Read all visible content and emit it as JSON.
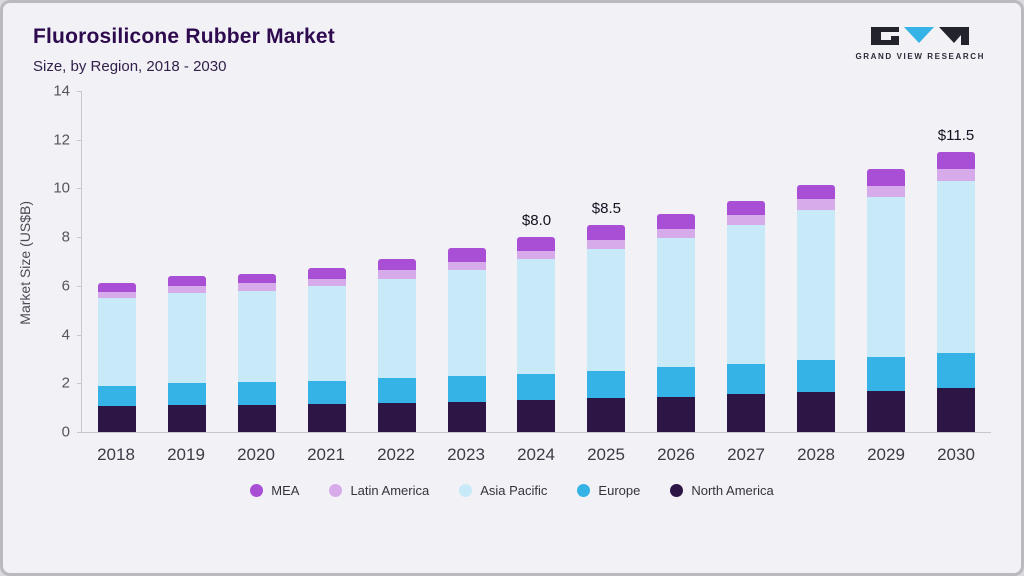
{
  "header": {
    "title": "Fluorosilicone Rubber Market",
    "subtitle": "Size, by Region, 2018 - 2030",
    "logo_text": "GRAND VIEW RESEARCH"
  },
  "colors": {
    "background": "#f2f1f6",
    "title": "#2e0a4f",
    "logo_dark": "#23232e",
    "logo_teal": "#35b3e6"
  },
  "chart_data": {
    "type": "bar",
    "stacked": true,
    "title": "Fluorosilicone Rubber Market",
    "subtitle": "Size, by Region, 2018 - 2030",
    "ylabel": "Market Size (US$B)",
    "ylim": [
      0,
      14
    ],
    "yticks": [
      0,
      2,
      4,
      6,
      8,
      10,
      12,
      14
    ],
    "grid": false,
    "legend_position": "bottom",
    "categories": [
      "2018",
      "2019",
      "2020",
      "2021",
      "2022",
      "2023",
      "2024",
      "2025",
      "2026",
      "2027",
      "2028",
      "2029",
      "2030"
    ],
    "series": [
      {
        "name": "North America",
        "color": "#2d1545",
        "values": [
          1.05,
          1.1,
          1.1,
          1.15,
          1.2,
          1.25,
          1.3,
          1.4,
          1.45,
          1.55,
          1.65,
          1.7,
          1.8
        ]
      },
      {
        "name": "Europe",
        "color": "#36b3e6",
        "values": [
          0.85,
          0.9,
          0.95,
          0.95,
          1.0,
          1.05,
          1.1,
          1.1,
          1.2,
          1.25,
          1.3,
          1.4,
          1.45
        ]
      },
      {
        "name": "Asia Pacific",
        "color": "#c8e9f8",
        "values": [
          3.6,
          3.7,
          3.75,
          3.9,
          4.1,
          4.35,
          4.7,
          5.0,
          5.3,
          5.7,
          6.15,
          6.55,
          7.05
        ]
      },
      {
        "name": "Latin America",
        "color": "#d7aaea",
        "values": [
          0.25,
          0.3,
          0.3,
          0.3,
          0.35,
          0.35,
          0.35,
          0.4,
          0.4,
          0.4,
          0.45,
          0.45,
          0.5
        ]
      },
      {
        "name": "MEA",
        "color": "#a94fd6",
        "values": [
          0.35,
          0.4,
          0.4,
          0.45,
          0.45,
          0.55,
          0.55,
          0.6,
          0.6,
          0.6,
          0.6,
          0.7,
          0.7
        ]
      }
    ],
    "totals": [
      6.1,
      6.4,
      6.5,
      6.75,
      7.1,
      7.55,
      8.0,
      8.5,
      8.95,
      9.5,
      10.15,
      10.8,
      11.5
    ],
    "annotations": [
      {
        "category": "2024",
        "label": "$8.0"
      },
      {
        "category": "2025",
        "label": "$8.5"
      },
      {
        "category": "2030",
        "label": "$11.5"
      }
    ],
    "legend": [
      "MEA",
      "Latin America",
      "Asia Pacific",
      "Europe",
      "North America"
    ]
  }
}
